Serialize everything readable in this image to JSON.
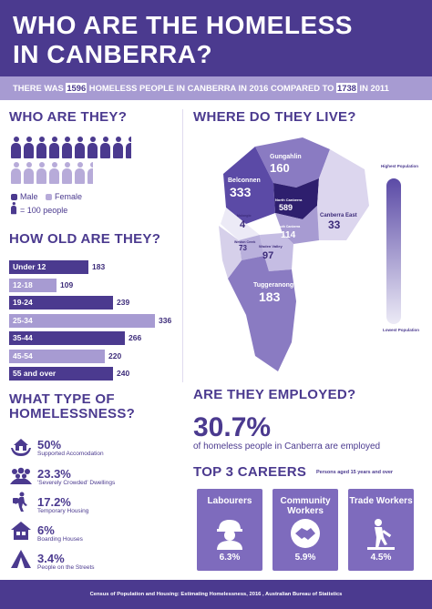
{
  "header": {
    "title_line1_a": "WHO ARE THE ",
    "title_line1_b": "HOMELESS",
    "title_line2": "IN CANBERRA?",
    "sub_a": "THERE WAS ",
    "sub_num1": "1596",
    "sub_b": " HOMELESS PEOPLE IN CANBERRA IN 2016 COMPARED TO ",
    "sub_num2": "1738",
    "sub_c": " IN 2011"
  },
  "who": {
    "title": "WHO ARE THEY?",
    "male_label": "Male",
    "female_label": "Female",
    "unit_label": "= 100 people",
    "male_icons": 9.5,
    "female_icons": 6.5,
    "colors": {
      "male": "#4b3a8f",
      "female": "#b7abd9"
    }
  },
  "age": {
    "title": "HOW OLD ARE THEY?",
    "chart_data": {
      "type": "bar",
      "categories": [
        "Under 12",
        "12-18",
        "19-24",
        "25-34",
        "35-44",
        "45-54",
        "55 and over"
      ],
      "values": [
        183,
        109,
        239,
        336,
        266,
        220,
        240
      ]
    }
  },
  "types": {
    "title_line1": "WHAT TYPE OF",
    "title_line2": "HOMELESSNESS?",
    "items": [
      {
        "pct": "50%",
        "label": "Supported Accomodation",
        "icon": "hands-house-icon"
      },
      {
        "pct": "23.3%",
        "label": "'Severely Crowded' Dwellings",
        "icon": "crowd-icon"
      },
      {
        "pct": "17.2%",
        "label": "Temporary Housing",
        "icon": "walking-person-icon"
      },
      {
        "pct": "6%",
        "label": "Boarding Houses",
        "icon": "house-icon"
      },
      {
        "pct": "3.4%",
        "label": "People on the Streets",
        "icon": "tent-icon"
      }
    ]
  },
  "where": {
    "title": "WHERE DO THEY LIVE?",
    "regions": [
      {
        "name": "Gungahlin",
        "value": "160"
      },
      {
        "name": "Belconnen",
        "value": "333"
      },
      {
        "name": "North Canberra",
        "value": "589"
      },
      {
        "name": "Canberra East",
        "value": "33"
      },
      {
        "name": "Molonglo",
        "value": "4"
      },
      {
        "name": "South Canberra",
        "value": "114"
      },
      {
        "name": "Weston Creek",
        "value": "73"
      },
      {
        "name": "Woden Valley",
        "value": "97"
      },
      {
        "name": "Tuggeranong",
        "value": "183"
      }
    ],
    "legend_high": "Highest Population",
    "legend_low": "Lowest Population"
  },
  "employed": {
    "title": "ARE THEY EMPLOYED?",
    "pct": "30.7%",
    "text": "of homeless people in Canberra are employed"
  },
  "careers": {
    "title": "TOP 3 CAREERS",
    "subtitle": "Persons aged 15 years and over",
    "items": [
      {
        "name": "Labourers",
        "pct": "6.3%",
        "icon": "worker-helmet-icon"
      },
      {
        "name": "Community Workers",
        "pct": "5.9%",
        "icon": "handshake-icon"
      },
      {
        "name": "Trade Workers",
        "pct": "4.5%",
        "icon": "trade-worker-icon"
      }
    ]
  },
  "footer": {
    "source": "Census of Population and Housing: Estimating Homelessness, 2016 , Australian Bureau of Statistics"
  }
}
